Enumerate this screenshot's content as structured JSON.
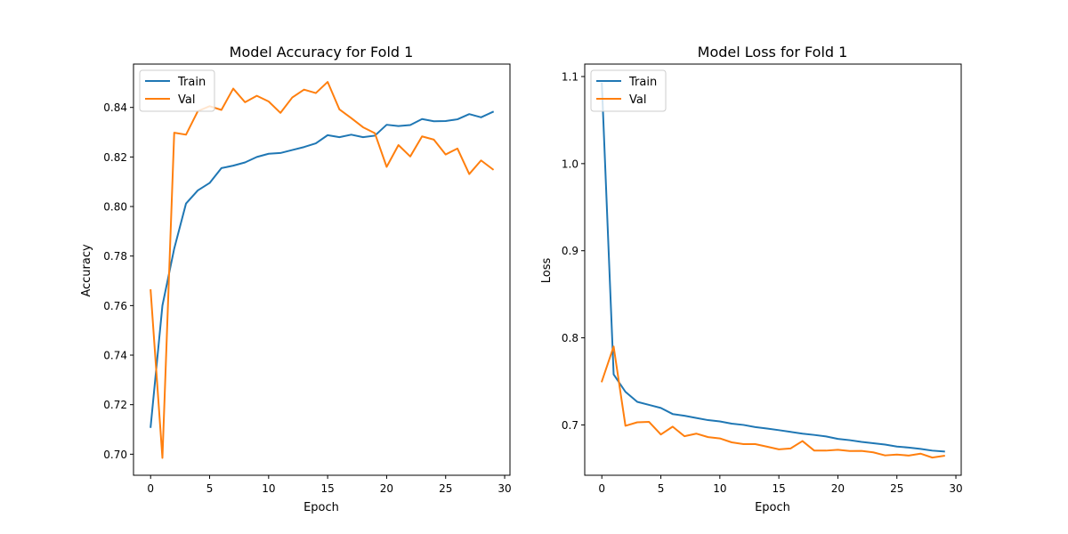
{
  "chart_data": [
    {
      "type": "line",
      "title": "Model Accuracy for Fold 1",
      "xlabel": "Epoch",
      "ylabel": "Accuracy",
      "xlim": [
        -1.45,
        30.45
      ],
      "ylim": [
        0.6915,
        0.8575
      ],
      "xticks": [
        0,
        5,
        10,
        15,
        20,
        25,
        30
      ],
      "xtick_labels": [
        "0",
        "5",
        "10",
        "15",
        "20",
        "25",
        "30"
      ],
      "yticks": [
        0.7,
        0.72,
        0.74,
        0.76,
        0.78,
        0.8,
        0.82,
        0.84
      ],
      "ytick_labels": [
        "0.70",
        "0.72",
        "0.74",
        "0.76",
        "0.78",
        "0.80",
        "0.82",
        "0.84"
      ],
      "grid": false,
      "legend_position": "upper left",
      "x": [
        0,
        1,
        2,
        3,
        4,
        5,
        6,
        7,
        8,
        9,
        10,
        11,
        12,
        13,
        14,
        15,
        16,
        17,
        18,
        19,
        20,
        21,
        22,
        23,
        24,
        25,
        26,
        27,
        28,
        29
      ],
      "series": [
        {
          "name": "Train",
          "color": "#1f77b4",
          "values": [
            0.711,
            0.76,
            0.783,
            0.8012,
            0.8065,
            0.8095,
            0.8155,
            0.8165,
            0.8178,
            0.82,
            0.8213,
            0.8216,
            0.8228,
            0.824,
            0.8255,
            0.8288,
            0.828,
            0.829,
            0.828,
            0.8286,
            0.833,
            0.8325,
            0.8329,
            0.8353,
            0.8344,
            0.8345,
            0.8352,
            0.8373,
            0.836,
            0.8382
          ]
        },
        {
          "name": "Val",
          "color": "#ff7f0e",
          "values": [
            0.7662,
            0.6985,
            0.8298,
            0.829,
            0.8385,
            0.8405,
            0.839,
            0.8476,
            0.8421,
            0.8447,
            0.8424,
            0.8378,
            0.844,
            0.8472,
            0.8458,
            0.8503,
            0.8392,
            0.8357,
            0.832,
            0.8296,
            0.816,
            0.8248,
            0.8202,
            0.8283,
            0.827,
            0.821,
            0.8234,
            0.8131,
            0.8186,
            0.815
          ]
        }
      ]
    },
    {
      "type": "line",
      "title": "Model Loss for Fold 1",
      "xlabel": "Epoch",
      "ylabel": "Loss",
      "xlim": [
        -1.45,
        30.45
      ],
      "ylim": [
        0.6422,
        1.1143
      ],
      "xticks": [
        0,
        5,
        10,
        15,
        20,
        25,
        30
      ],
      "xtick_labels": [
        "0",
        "5",
        "10",
        "15",
        "20",
        "25",
        "30"
      ],
      "yticks": [
        0.7,
        0.8,
        0.9,
        1.0,
        1.1
      ],
      "ytick_labels": [
        "0.7",
        "0.8",
        "0.9",
        "1.0",
        "1.1"
      ],
      "grid": false,
      "legend_position": "upper left",
      "x": [
        0,
        1,
        2,
        3,
        4,
        5,
        6,
        7,
        8,
        9,
        10,
        11,
        12,
        13,
        14,
        15,
        16,
        17,
        18,
        19,
        20,
        21,
        22,
        23,
        24,
        25,
        26,
        27,
        28,
        29
      ],
      "series": [
        {
          "name": "Train",
          "color": "#1f77b4",
          "values": [
            1.092,
            0.758,
            0.738,
            0.7265,
            0.723,
            0.7195,
            0.7125,
            0.7105,
            0.708,
            0.7055,
            0.704,
            0.7015,
            0.7,
            0.6975,
            0.6958,
            0.694,
            0.692,
            0.69,
            0.6885,
            0.6868,
            0.684,
            0.6825,
            0.6805,
            0.679,
            0.6775,
            0.6752,
            0.674,
            0.6725,
            0.6705,
            0.6695
          ]
        },
        {
          "name": "Val",
          "color": "#ff7f0e",
          "values": [
            0.75,
            0.79,
            0.699,
            0.703,
            0.7035,
            0.689,
            0.698,
            0.687,
            0.69,
            0.686,
            0.6845,
            0.68,
            0.678,
            0.678,
            0.675,
            0.672,
            0.673,
            0.6815,
            0.6705,
            0.6705,
            0.6715,
            0.67,
            0.6702,
            0.6685,
            0.665,
            0.666,
            0.6648,
            0.667,
            0.6625,
            0.6645
          ]
        }
      ]
    }
  ]
}
